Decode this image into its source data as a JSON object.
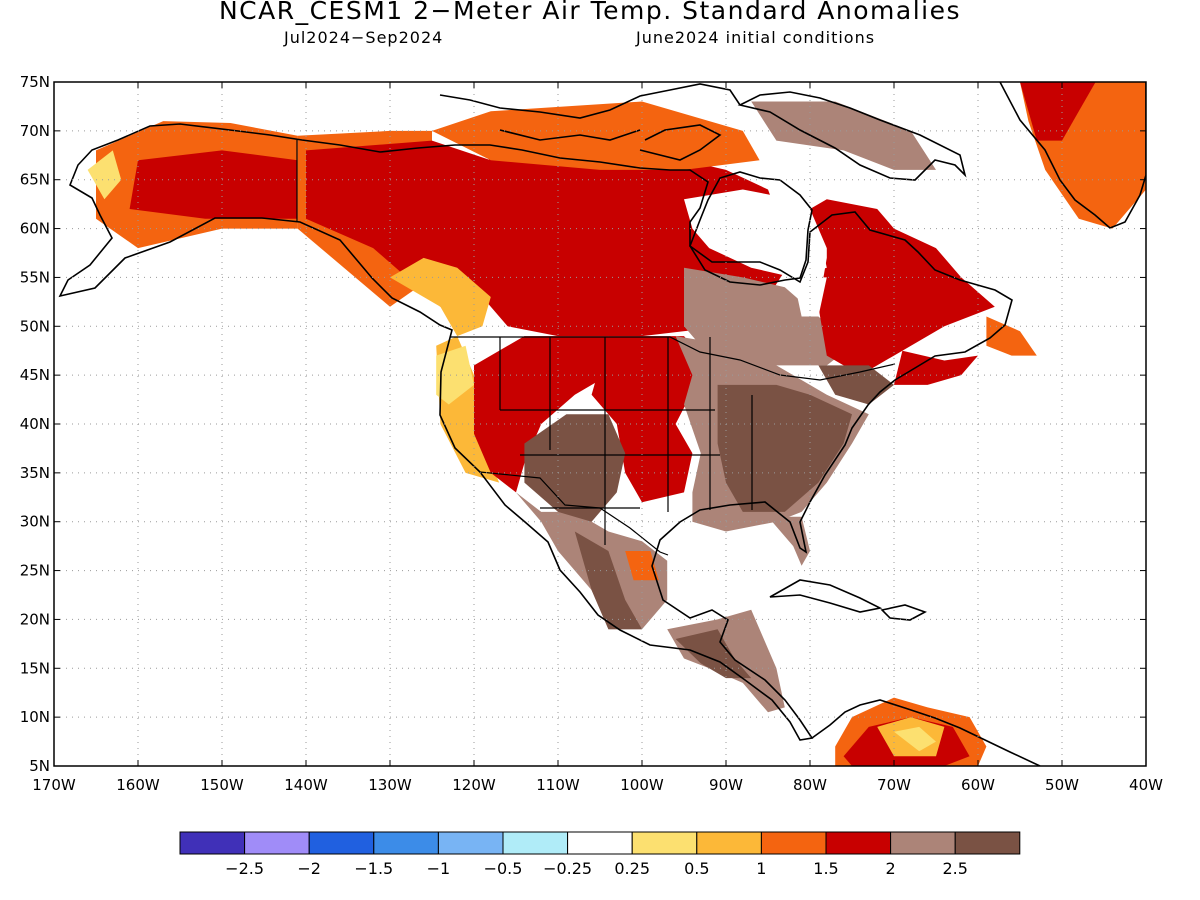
{
  "title": "NCAR_CESM1 2−Meter Air Temp. Standard Anomalies",
  "subtitle_left": "Jul2024−Sep2024",
  "subtitle_right": "June2024 initial conditions",
  "map": {
    "lon_range": [
      -170,
      -40
    ],
    "lat_range": [
      5,
      75
    ],
    "lon_ticks": [
      -170,
      -160,
      -150,
      -140,
      -130,
      -120,
      -110,
      -100,
      -90,
      -80,
      -70,
      -60,
      -50,
      -40
    ],
    "lat_ticks": [
      5,
      10,
      15,
      20,
      25,
      30,
      35,
      40,
      45,
      50,
      55,
      60,
      65,
      70,
      75
    ],
    "lon_tick_labels": [
      "170W",
      "160W",
      "150W",
      "140W",
      "130W",
      "120W",
      "110W",
      "100W",
      "90W",
      "80W",
      "70W",
      "60W",
      "50W",
      "40W"
    ],
    "lat_tick_labels": [
      "5N",
      "10N",
      "15N",
      "20N",
      "25N",
      "30N",
      "35N",
      "40N",
      "45N",
      "50N",
      "55N",
      "60N",
      "65N",
      "70N",
      "75N"
    ],
    "grid": "dotted"
  },
  "colorbar": {
    "colors": [
      "#4030b8",
      "#a08cf8",
      "#2060e0",
      "#3c8ce8",
      "#78b4f4",
      "#b0ecf8",
      "#ffffff",
      "#fce070",
      "#fcb838",
      "#f46410",
      "#c80000",
      "#ac8478",
      "#7a5244"
    ],
    "labels": [
      "−2.5",
      "−2",
      "−1.5",
      "−1",
      "−0.5",
      "−0.25",
      "0.25",
      "0.5",
      "1",
      "1.5",
      "2",
      "2.5"
    ]
  },
  "regions": [
    {
      "name": "alaska-anomaly",
      "color": "#f46410",
      "lonlat": [
        [
          -165,
          68
        ],
        [
          -157,
          71
        ],
        [
          -149,
          70.8
        ],
        [
          -141,
          69.5
        ],
        [
          -141,
          60
        ],
        [
          -150,
          60
        ],
        [
          -160,
          58
        ],
        [
          -165,
          61
        ]
      ]
    },
    {
      "name": "alaska-core",
      "color": "#c80000",
      "lonlat": [
        [
          -160,
          67
        ],
        [
          -150,
          68
        ],
        [
          -141,
          67
        ],
        [
          -141,
          61
        ],
        [
          -152,
          61
        ],
        [
          -161,
          62
        ]
      ]
    },
    {
      "name": "alaska-edge",
      "color": "#fce070",
      "lonlat": [
        [
          -166,
          66
        ],
        [
          -163,
          68
        ],
        [
          -162,
          65
        ],
        [
          -164,
          63
        ]
      ]
    },
    {
      "name": "northwest-canada",
      "color": "#f46410",
      "lonlat": [
        [
          -141,
          69.5
        ],
        [
          -130,
          70
        ],
        [
          -125,
          70
        ],
        [
          -125,
          55
        ],
        [
          -130,
          52
        ],
        [
          -141,
          60
        ]
      ]
    },
    {
      "name": "canada-west-core",
      "color": "#c80000",
      "lonlat": [
        [
          -140,
          68
        ],
        [
          -125,
          69
        ],
        [
          -118,
          67
        ],
        [
          -112,
          60
        ],
        [
          -118,
          54
        ],
        [
          -124,
          52
        ],
        [
          -132,
          58
        ],
        [
          -140,
          61
        ]
      ]
    },
    {
      "name": "canada-central",
      "color": "#c80000",
      "lonlat": [
        [
          -118,
          69
        ],
        [
          -100,
          68
        ],
        [
          -90,
          66
        ],
        [
          -85,
          64
        ],
        [
          -82,
          57
        ],
        [
          -85,
          53
        ],
        [
          -90,
          50
        ],
        [
          -100,
          49
        ],
        [
          -110,
          49
        ],
        [
          -116,
          50
        ],
        [
          -120,
          54
        ],
        [
          -119,
          60
        ]
      ]
    },
    {
      "name": "arctic-islands",
      "color": "#f46410",
      "lonlat": [
        [
          -125,
          70
        ],
        [
          -118,
          72
        ],
        [
          -100,
          73
        ],
        [
          -88,
          70
        ],
        [
          -86,
          67
        ],
        [
          -95,
          66
        ],
        [
          -105,
          66
        ],
        [
          -118,
          67
        ]
      ]
    },
    {
      "name": "bc-coast",
      "color": "#fcb838",
      "lonlat": [
        [
          -130,
          55
        ],
        [
          -124,
          52
        ],
        [
          -122,
          49
        ],
        [
          -119,
          50
        ],
        [
          -118,
          53
        ],
        [
          -122,
          56
        ],
        [
          -126,
          57
        ]
      ]
    },
    {
      "name": "hudson-south",
      "color": "#ac8478",
      "lonlat": [
        [
          -95,
          56
        ],
        [
          -88,
          55
        ],
        [
          -83,
          54
        ],
        [
          -79,
          51
        ],
        [
          -75,
          48
        ],
        [
          -78,
          46
        ],
        [
          -85,
          46
        ],
        [
          -92,
          47
        ],
        [
          -95,
          50
        ]
      ]
    },
    {
      "name": "labrador-quebec",
      "color": "#c80000",
      "lonlat": [
        [
          -78,
          62
        ],
        [
          -70,
          60
        ],
        [
          -65,
          58
        ],
        [
          -62,
          55
        ],
        [
          -58,
          52
        ],
        [
          -64,
          50
        ],
        [
          -70,
          47
        ],
        [
          -74,
          45
        ],
        [
          -78,
          47
        ],
        [
          -79,
          52
        ],
        [
          -78,
          57
        ]
      ]
    },
    {
      "name": "nova-scotia",
      "color": "#c80000",
      "lonlat": [
        [
          -69,
          47.5
        ],
        [
          -64,
          46.5
        ],
        [
          -60,
          47
        ],
        [
          -62,
          45
        ],
        [
          -66,
          44
        ],
        [
          -70,
          44
        ]
      ]
    },
    {
      "name": "newfoundland",
      "color": "#f46410",
      "lonlat": [
        [
          -59,
          51
        ],
        [
          -55,
          49.5
        ],
        [
          -53,
          47
        ],
        [
          -56,
          47
        ],
        [
          -59,
          48
        ]
      ]
    },
    {
      "name": "us-west-coast",
      "color": "#fcb838",
      "lonlat": [
        [
          -124.5,
          48
        ],
        [
          -122,
          49
        ],
        [
          -120,
          45
        ],
        [
          -120,
          40
        ],
        [
          -117,
          34
        ],
        [
          -121,
          35
        ],
        [
          -124,
          40
        ]
      ]
    },
    {
      "name": "pnw-yellow",
      "color": "#fce070",
      "lonlat": [
        [
          -124.5,
          47
        ],
        [
          -121,
          48
        ],
        [
          -120,
          44
        ],
        [
          -123,
          42
        ],
        [
          -124.5,
          43
        ]
      ]
    },
    {
      "name": "great-basin",
      "color": "#c80000",
      "lonlat": [
        [
          -120,
          46
        ],
        [
          -114,
          49
        ],
        [
          -104,
          49
        ],
        [
          -104,
          45
        ],
        [
          -108,
          43
        ],
        [
          -112,
          40
        ],
        [
          -114,
          36
        ],
        [
          -115,
          33
        ],
        [
          -118,
          35
        ],
        [
          -120,
          39
        ]
      ]
    },
    {
      "name": "northern-plains",
      "color": "#c80000",
      "lonlat": [
        [
          -104,
          49
        ],
        [
          -95,
          49
        ],
        [
          -93,
          47
        ],
        [
          -93,
          45
        ],
        [
          -96,
          40
        ],
        [
          -94,
          37
        ],
        [
          -95,
          33
        ],
        [
          -100,
          32
        ],
        [
          -102,
          35
        ],
        [
          -103,
          40
        ],
        [
          -106,
          43
        ]
      ]
    },
    {
      "name": "southwest",
      "color": "#ac8478",
      "lonlat": [
        [
          -115,
          33
        ],
        [
          -112,
          31
        ],
        [
          -108,
          31
        ],
        [
          -104,
          29
        ],
        [
          -100,
          28
        ],
        [
          -97,
          26
        ],
        [
          -97,
          22
        ],
        [
          -100,
          19
        ],
        [
          -104,
          19
        ],
        [
          -106,
          23
        ],
        [
          -110,
          27
        ],
        [
          -112,
          30
        ],
        [
          -114,
          32
        ]
      ]
    },
    {
      "name": "four-corners",
      "color": "#7a5244",
      "lonlat": [
        [
          -114,
          38
        ],
        [
          -109,
          41
        ],
        [
          -104,
          41
        ],
        [
          -102,
          37
        ],
        [
          -103,
          33
        ],
        [
          -106,
          30
        ],
        [
          -110,
          31
        ],
        [
          -114,
          34
        ]
      ]
    },
    {
      "name": "mexico-core",
      "color": "#7a5244",
      "lonlat": [
        [
          -108,
          29
        ],
        [
          -104,
          27
        ],
        [
          -102,
          22
        ],
        [
          -100,
          19
        ],
        [
          -104,
          19
        ],
        [
          -106,
          23
        ]
      ]
    },
    {
      "name": "mexico-hot",
      "color": "#f46410",
      "lonlat": [
        [
          -102,
          27
        ],
        [
          -99,
          27
        ],
        [
          -98,
          24
        ],
        [
          -101,
          24
        ]
      ]
    },
    {
      "name": "midwest",
      "color": "#ac8478",
      "lonlat": [
        [
          -96,
          49
        ],
        [
          -89,
          48
        ],
        [
          -84,
          46
        ],
        [
          -78,
          43
        ],
        [
          -73,
          41
        ],
        [
          -75,
          38
        ],
        [
          -78,
          34
        ],
        [
          -81,
          31
        ],
        [
          -84,
          30
        ],
        [
          -90,
          29
        ],
        [
          -94,
          30
        ],
        [
          -94,
          33
        ],
        [
          -93,
          37
        ],
        [
          -95,
          42
        ],
        [
          -94,
          45
        ]
      ]
    },
    {
      "name": "eastern-us-core",
      "color": "#7a5244",
      "lonlat": [
        [
          -91,
          44
        ],
        [
          -84,
          44
        ],
        [
          -80,
          43
        ],
        [
          -75,
          41
        ],
        [
          -76,
          38
        ],
        [
          -79,
          34
        ],
        [
          -83,
          31
        ],
        [
          -88,
          31
        ],
        [
          -90,
          34
        ],
        [
          -91,
          38
        ]
      ]
    },
    {
      "name": "northeast-brown",
      "color": "#7a5244",
      "lonlat": [
        [
          -79,
          46
        ],
        [
          -73,
          46
        ],
        [
          -70,
          44
        ],
        [
          -73,
          42
        ],
        [
          -77,
          43
        ]
      ]
    },
    {
      "name": "florida",
      "color": "#ac8478",
      "lonlat": [
        [
          -85,
          30.5
        ],
        [
          -81,
          30.5
        ],
        [
          -80,
          27
        ],
        [
          -81,
          25.5
        ],
        [
          -82,
          27.5
        ],
        [
          -84,
          29.5
        ]
      ]
    },
    {
      "name": "central-america",
      "color": "#ac8478",
      "lonlat": [
        [
          -97,
          19
        ],
        [
          -91,
          20
        ],
        [
          -87,
          21
        ],
        [
          -84,
          15
        ],
        [
          -83,
          11
        ],
        [
          -85,
          10.5
        ],
        [
          -88,
          13.5
        ],
        [
          -92,
          15
        ],
        [
          -95,
          16
        ]
      ]
    },
    {
      "name": "central-america-core",
      "color": "#7a5244",
      "lonlat": [
        [
          -96,
          18
        ],
        [
          -91,
          19
        ],
        [
          -89,
          16
        ],
        [
          -87,
          14
        ],
        [
          -90,
          14
        ],
        [
          -93,
          15.5
        ]
      ]
    },
    {
      "name": "venezuela",
      "color": "#f46410",
      "lonlat": [
        [
          -77,
          7
        ],
        [
          -75,
          10
        ],
        [
          -70,
          12
        ],
        [
          -66,
          11
        ],
        [
          -61,
          10
        ],
        [
          -59,
          7
        ],
        [
          -60,
          5
        ],
        [
          -77,
          5
        ]
      ]
    },
    {
      "name": "venezuela-core",
      "color": "#c80000",
      "lonlat": [
        [
          -76,
          6
        ],
        [
          -73,
          9
        ],
        [
          -68,
          10
        ],
        [
          -63,
          9
        ],
        [
          -61,
          6
        ],
        [
          -64,
          5
        ],
        [
          -75,
          5
        ]
      ]
    },
    {
      "name": "venezuela-hot",
      "color": "#fcb838",
      "lonlat": [
        [
          -72,
          9
        ],
        [
          -68,
          10
        ],
        [
          -64,
          9
        ],
        [
          -65,
          6
        ],
        [
          -70,
          6
        ]
      ]
    },
    {
      "name": "venezuela-peak",
      "color": "#fce070",
      "lonlat": [
        [
          -70,
          8.5
        ],
        [
          -67,
          9
        ],
        [
          -65,
          7.5
        ],
        [
          -67,
          6.5
        ]
      ]
    },
    {
      "name": "greenland-edge",
      "color": "#f46410",
      "lonlat": [
        [
          -55,
          75
        ],
        [
          -40,
          75
        ],
        [
          -40,
          64
        ],
        [
          -44,
          60
        ],
        [
          -48,
          61
        ],
        [
          -52,
          66
        ],
        [
          -54,
          71
        ]
      ]
    },
    {
      "name": "greenland-core",
      "color": "#c80000",
      "lonlat": [
        [
          -55,
          75
        ],
        [
          -46,
          75
        ],
        [
          -48,
          72
        ],
        [
          -50,
          69
        ],
        [
          -53,
          69
        ],
        [
          -54,
          72
        ]
      ]
    },
    {
      "name": "baffin-brown",
      "color": "#ac8478",
      "lonlat": [
        [
          -87,
          73
        ],
        [
          -77,
          73
        ],
        [
          -68,
          70
        ],
        [
          -65,
          66
        ],
        [
          -70,
          66
        ],
        [
          -76,
          68
        ],
        [
          -84,
          69
        ]
      ]
    },
    {
      "name": "quebec-north",
      "color": "#c80000",
      "lonlat": [
        [
          -80,
          62
        ],
        [
          -78,
          63
        ],
        [
          -72,
          62
        ],
        [
          -70,
          60
        ],
        [
          -75,
          59
        ],
        [
          -78,
          58
        ]
      ]
    }
  ],
  "white_patches": [
    {
      "name": "hudson-bay",
      "lonlat": [
        [
          -95,
          63
        ],
        [
          -88,
          64
        ],
        [
          -82,
          63
        ],
        [
          -79,
          60
        ],
        [
          -78,
          56
        ],
        [
          -82,
          55
        ],
        [
          -87,
          56
        ],
        [
          -92,
          58
        ],
        [
          -94,
          60
        ]
      ]
    },
    {
      "name": "james-bay",
      "lonlat": [
        [
          -82,
          55
        ],
        [
          -78,
          55
        ],
        [
          -79,
          51
        ],
        [
          -81,
          51
        ]
      ]
    }
  ]
}
